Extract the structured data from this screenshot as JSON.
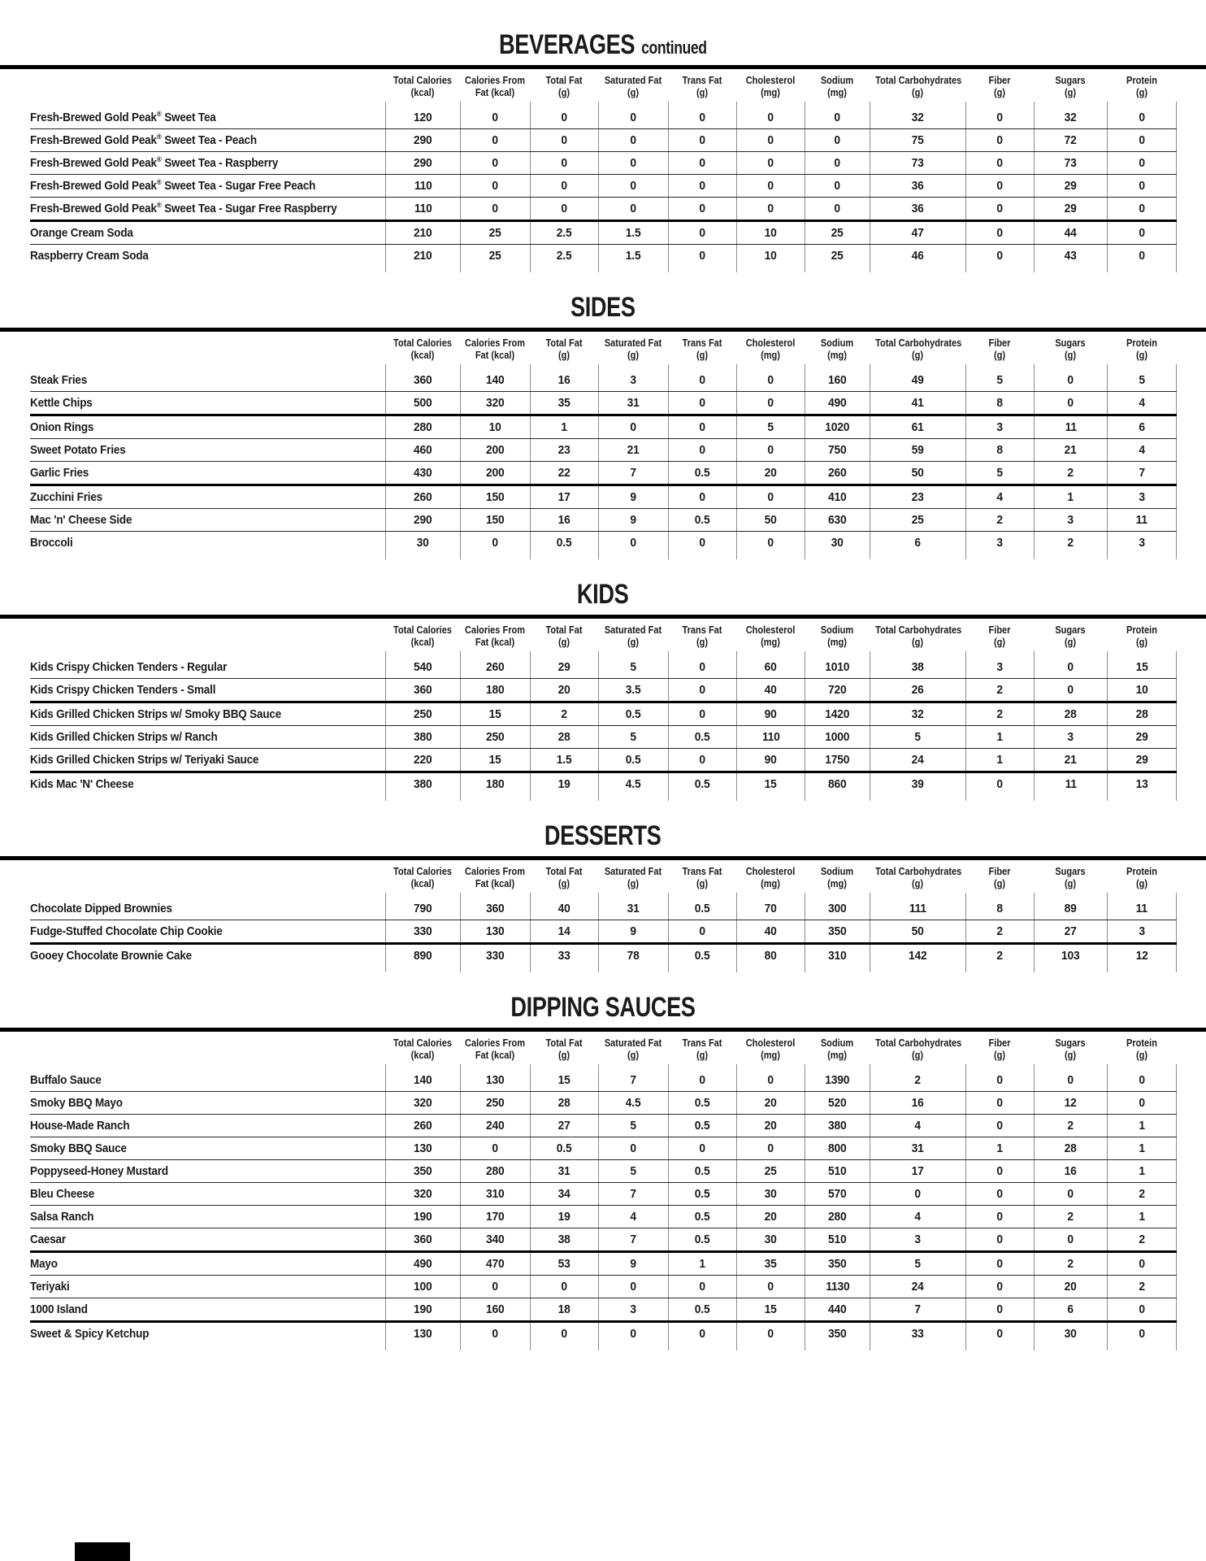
{
  "page": {
    "background": "#ffffff",
    "text_color": "#1b1b1b",
    "rule_color": "#000000",
    "grid_line_color": "#8c8c8c"
  },
  "columns": [
    {
      "line1": "Total Calories",
      "line2": "(kcal)"
    },
    {
      "line1": "Calories From",
      "line2": "Fat (kcal)"
    },
    {
      "line1": "Total Fat",
      "line2": "(g)"
    },
    {
      "line1": "Saturated Fat",
      "line2": "(g)"
    },
    {
      "line1": "Trans Fat",
      "line2": "(g)"
    },
    {
      "line1": "Cholesterol",
      "line2": "(mg)"
    },
    {
      "line1": "Sodium",
      "line2": "(mg)"
    },
    {
      "line1": "Total Carbohydrates",
      "line2": "(g)"
    },
    {
      "line1": "Fiber",
      "line2": "(g)"
    },
    {
      "line1": "Sugars",
      "line2": "(g)"
    },
    {
      "line1": "Protein",
      "line2": "(g)"
    }
  ],
  "sections": [
    {
      "title": "BEVERAGES",
      "title_suffix": "continued",
      "rows": [
        {
          "name": "Fresh-Brewed Gold Peak® Sweet Tea",
          "thick_top": false,
          "values": [
            120,
            0,
            0,
            0,
            0,
            0,
            0,
            32,
            0,
            32,
            0
          ]
        },
        {
          "name": "Fresh-Brewed Gold Peak® Sweet Tea - Peach",
          "thick_top": false,
          "values": [
            290,
            0,
            0,
            0,
            0,
            0,
            0,
            75,
            0,
            72,
            0
          ]
        },
        {
          "name": "Fresh-Brewed Gold Peak® Sweet Tea - Raspberry",
          "thick_top": false,
          "values": [
            290,
            0,
            0,
            0,
            0,
            0,
            0,
            73,
            0,
            73,
            0
          ]
        },
        {
          "name": "Fresh-Brewed Gold Peak® Sweet Tea - Sugar Free Peach",
          "thick_top": false,
          "values": [
            110,
            0,
            0,
            0,
            0,
            0,
            0,
            36,
            0,
            29,
            0
          ]
        },
        {
          "name": "Fresh-Brewed Gold Peak® Sweet Tea - Sugar Free Raspberry",
          "thick_top": false,
          "values": [
            110,
            0,
            0,
            0,
            0,
            0,
            0,
            36,
            0,
            29,
            0
          ]
        },
        {
          "name": "Orange Cream Soda",
          "thick_top": true,
          "values": [
            210,
            25,
            2.5,
            1.5,
            0,
            10,
            25,
            47,
            0,
            44,
            0
          ]
        },
        {
          "name": "Raspberry Cream Soda",
          "thick_top": false,
          "values": [
            210,
            25,
            2.5,
            1.5,
            0,
            10,
            25,
            46,
            0,
            43,
            0
          ]
        }
      ]
    },
    {
      "title": "SIDES",
      "title_suffix": "",
      "rows": [
        {
          "name": "Steak Fries",
          "thick_top": false,
          "values": [
            360,
            140,
            16,
            3,
            0,
            0,
            160,
            49,
            5,
            0,
            5
          ]
        },
        {
          "name": "Kettle Chips",
          "thick_top": false,
          "values": [
            500,
            320,
            35,
            31,
            0,
            0,
            490,
            41,
            8,
            0,
            4
          ]
        },
        {
          "name": "Onion Rings",
          "thick_top": true,
          "values": [
            280,
            10,
            1,
            0,
            0,
            5,
            1020,
            61,
            3,
            11,
            6
          ]
        },
        {
          "name": "Sweet Potato Fries",
          "thick_top": false,
          "values": [
            460,
            200,
            23,
            21,
            0,
            0,
            750,
            59,
            8,
            21,
            4
          ]
        },
        {
          "name": "Garlic Fries",
          "thick_top": false,
          "values": [
            430,
            200,
            22,
            7,
            0.5,
            20,
            260,
            50,
            5,
            2,
            7
          ]
        },
        {
          "name": "Zucchini Fries",
          "thick_top": true,
          "values": [
            260,
            150,
            17,
            9,
            0,
            0,
            410,
            23,
            4,
            1,
            3
          ]
        },
        {
          "name": "Mac 'n' Cheese Side",
          "thick_top": false,
          "values": [
            290,
            150,
            16,
            9,
            0.5,
            50,
            630,
            25,
            2,
            3,
            11
          ]
        },
        {
          "name": "Broccoli",
          "thick_top": false,
          "values": [
            30,
            0,
            0.5,
            0,
            0,
            0,
            30,
            6,
            3,
            2,
            3
          ]
        }
      ]
    },
    {
      "title": "KIDS",
      "title_suffix": "",
      "rows": [
        {
          "name": "Kids Crispy Chicken Tenders - Regular",
          "thick_top": false,
          "values": [
            540,
            260,
            29,
            5,
            0,
            60,
            1010,
            38,
            3,
            0,
            15
          ]
        },
        {
          "name": "Kids Crispy Chicken Tenders - Small",
          "thick_top": false,
          "values": [
            360,
            180,
            20,
            3.5,
            0,
            40,
            720,
            26,
            2,
            0,
            10
          ]
        },
        {
          "name": "Kids Grilled Chicken Strips w/ Smoky BBQ Sauce",
          "thick_top": true,
          "values": [
            250,
            15,
            2,
            0.5,
            0,
            90,
            1420,
            32,
            2,
            28,
            28
          ]
        },
        {
          "name": "Kids Grilled Chicken Strips w/ Ranch",
          "thick_top": false,
          "values": [
            380,
            250,
            28,
            5,
            0.5,
            110,
            1000,
            5,
            1,
            3,
            29
          ]
        },
        {
          "name": "Kids Grilled Chicken Strips w/ Teriyaki Sauce",
          "thick_top": false,
          "values": [
            220,
            15,
            1.5,
            0.5,
            0,
            90,
            1750,
            24,
            1,
            21,
            29
          ]
        },
        {
          "name": "Kids Mac 'N' Cheese",
          "thick_top": true,
          "values": [
            380,
            180,
            19,
            4.5,
            0.5,
            15,
            860,
            39,
            0,
            11,
            13
          ]
        }
      ]
    },
    {
      "title": "DESSERTS",
      "title_suffix": "",
      "rows": [
        {
          "name": "Chocolate Dipped Brownies",
          "thick_top": false,
          "values": [
            790,
            360,
            40,
            31,
            0.5,
            70,
            300,
            111,
            8,
            89,
            11
          ]
        },
        {
          "name": "Fudge-Stuffed Chocolate Chip Cookie",
          "thick_top": false,
          "values": [
            330,
            130,
            14,
            9,
            0,
            40,
            350,
            50,
            2,
            27,
            3
          ]
        },
        {
          "name": "Gooey Chocolate Brownie Cake",
          "thick_top": true,
          "values": [
            890,
            330,
            33,
            78,
            0.5,
            80,
            310,
            142,
            2,
            103,
            12
          ]
        }
      ]
    },
    {
      "title": "DIPPING SAUCES",
      "title_suffix": "",
      "rows": [
        {
          "name": "Buffalo Sauce",
          "thick_top": false,
          "values": [
            140,
            130,
            15,
            7,
            0,
            0,
            1390,
            2,
            0,
            0,
            0
          ]
        },
        {
          "name": "Smoky BBQ Mayo",
          "thick_top": false,
          "values": [
            320,
            250,
            28,
            4.5,
            0.5,
            20,
            520,
            16,
            0,
            12,
            0
          ]
        },
        {
          "name": "House-Made Ranch",
          "thick_top": false,
          "values": [
            260,
            240,
            27,
            5,
            0.5,
            20,
            380,
            4,
            0,
            2,
            1
          ]
        },
        {
          "name": "Smoky BBQ Sauce",
          "thick_top": false,
          "values": [
            130,
            0,
            0.5,
            0,
            0,
            0,
            800,
            31,
            1,
            28,
            1
          ]
        },
        {
          "name": "Poppyseed-Honey Mustard",
          "thick_top": false,
          "values": [
            350,
            280,
            31,
            5,
            0.5,
            25,
            510,
            17,
            0,
            16,
            1
          ]
        },
        {
          "name": "Bleu Cheese",
          "thick_top": false,
          "values": [
            320,
            310,
            34,
            7,
            0.5,
            30,
            570,
            0,
            0,
            0,
            2
          ]
        },
        {
          "name": "Salsa Ranch",
          "thick_top": false,
          "values": [
            190,
            170,
            19,
            4,
            0.5,
            20,
            280,
            4,
            0,
            2,
            1
          ]
        },
        {
          "name": "Caesar",
          "thick_top": false,
          "values": [
            360,
            340,
            38,
            7,
            0.5,
            30,
            510,
            3,
            0,
            0,
            2
          ]
        },
        {
          "name": "Mayo",
          "thick_top": true,
          "values": [
            490,
            470,
            53,
            9,
            1,
            35,
            350,
            5,
            0,
            2,
            0
          ]
        },
        {
          "name": "Teriyaki",
          "thick_top": false,
          "values": [
            100,
            0,
            0,
            0,
            0,
            0,
            1130,
            24,
            0,
            20,
            2
          ]
        },
        {
          "name": "1000 Island",
          "thick_top": false,
          "values": [
            190,
            160,
            18,
            3,
            0.5,
            15,
            440,
            7,
            0,
            6,
            0
          ]
        },
        {
          "name": "Sweet & Spicy Ketchup",
          "thick_top": true,
          "values": [
            130,
            0,
            0,
            0,
            0,
            0,
            350,
            33,
            0,
            30,
            0
          ]
        }
      ]
    }
  ]
}
